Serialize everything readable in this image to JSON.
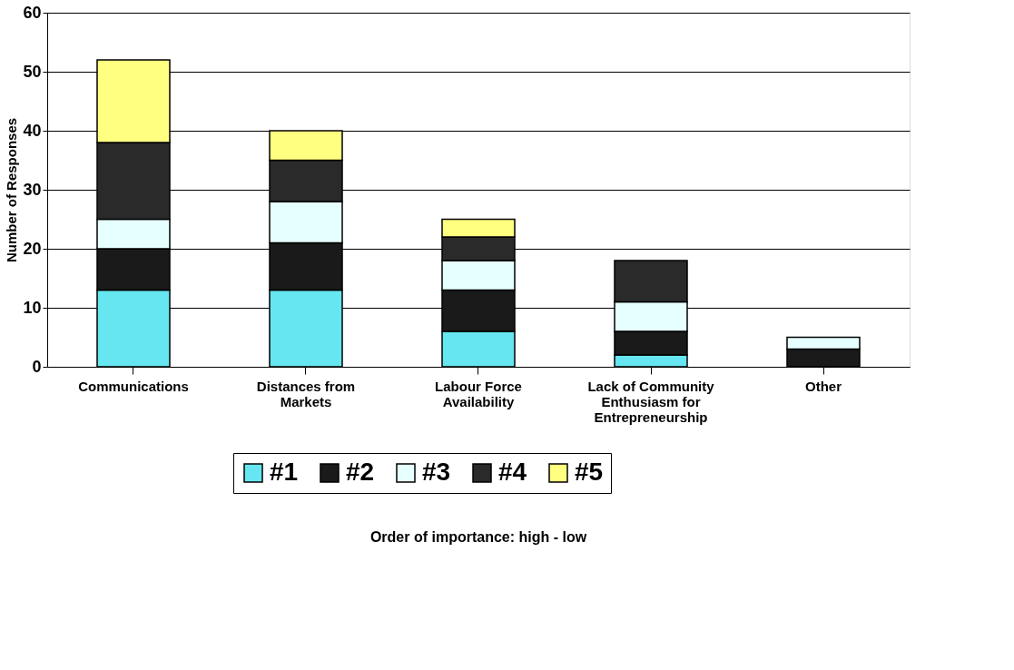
{
  "chart_data": {
    "type": "bar",
    "stacked": true,
    "ylabel": "Number of Responses",
    "annotations": [
      "Order of importance: high - low"
    ],
    "categories": [
      "Communications",
      "Distances from Markets",
      "Labour Force Availability",
      "Lack of Community Enthusiasm for Entrepreneurship",
      "Other"
    ],
    "series": [
      {
        "name": "#1",
        "color": "#66e6f0",
        "values": [
          13,
          13,
          6,
          2,
          0
        ]
      },
      {
        "name": "#2",
        "color": "#1a1a1a",
        "values": [
          7,
          8,
          7,
          4,
          3
        ]
      },
      {
        "name": "#3",
        "color": "#e6ffff",
        "values": [
          5,
          7,
          5,
          5,
          2
        ]
      },
      {
        "name": "#4",
        "color": "#2a2a2a",
        "values": [
          13,
          7,
          4,
          7,
          0
        ]
      },
      {
        "name": "#5",
        "color": "#ffff80",
        "values": [
          14,
          5,
          3,
          0,
          0
        ]
      }
    ],
    "ylim": [
      0,
      60
    ],
    "yticks": [
      0,
      10,
      20,
      30,
      40,
      50,
      60
    ],
    "grid": "y",
    "legend": "bottom"
  }
}
